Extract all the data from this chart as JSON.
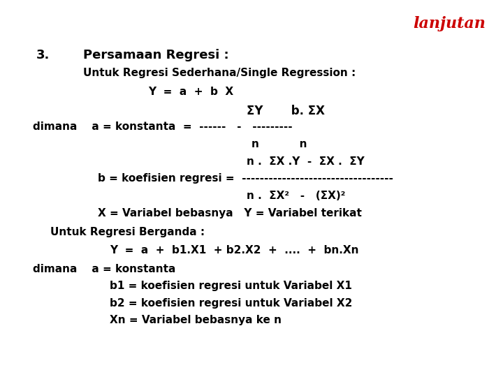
{
  "background_color": "#ffffff",
  "lanjutan_text": "lanjutan",
  "lanjutan_color": "#cc0000",
  "lanjutan_fx": 0.965,
  "lanjutan_fy": 0.958,
  "lanjutan_fontsize": 16,
  "lines": [
    {
      "text": "3.",
      "fx": 0.072,
      "fy": 0.87,
      "fs": 13,
      "bold": true
    },
    {
      "text": "Persamaan Regresi :",
      "fx": 0.165,
      "fy": 0.87,
      "fs": 13,
      "bold": true
    },
    {
      "text": "Untuk Regresi Sederhana/Single Regression :",
      "fx": 0.165,
      "fy": 0.82,
      "fs": 11,
      "bold": true
    },
    {
      "text": "Y  =  a  +  b  X",
      "fx": 0.295,
      "fy": 0.77,
      "fs": 11,
      "bold": true
    },
    {
      "text": "ΣY       b. ΣX",
      "fx": 0.49,
      "fy": 0.722,
      "fs": 12,
      "bold": true
    },
    {
      "text": "dimana    a = konstanta  =  ------   -   ---------",
      "fx": 0.065,
      "fy": 0.678,
      "fs": 11,
      "bold": true
    },
    {
      "text": "n           n",
      "fx": 0.5,
      "fy": 0.632,
      "fs": 11,
      "bold": true
    },
    {
      "text": "n .  ΣX .Y  -  ΣX .  ΣY",
      "fx": 0.49,
      "fy": 0.586,
      "fs": 11,
      "bold": true
    },
    {
      "text": "b = koefisien regresi =  ----------------------------------",
      "fx": 0.195,
      "fy": 0.54,
      "fs": 11,
      "bold": true
    },
    {
      "text": "n .  ΣX²   -   (ΣX)²",
      "fx": 0.49,
      "fy": 0.494,
      "fs": 11,
      "bold": true
    },
    {
      "text": "X = Variabel bebasnya   Y = Variabel terikat",
      "fx": 0.195,
      "fy": 0.448,
      "fs": 11,
      "bold": true
    },
    {
      "text": "Untuk Regresi Berganda :",
      "fx": 0.1,
      "fy": 0.398,
      "fs": 11,
      "bold": true
    },
    {
      "text": "Y  =  a  +  b1.X1  + b2.X2  +  ....  +  bn.Xn",
      "fx": 0.218,
      "fy": 0.35,
      "fs": 11,
      "bold": true
    },
    {
      "text": "dimana    a = konstanta",
      "fx": 0.065,
      "fy": 0.3,
      "fs": 11,
      "bold": true
    },
    {
      "text": "b1 = koefisien regresi untuk Variabel X1",
      "fx": 0.218,
      "fy": 0.255,
      "fs": 11,
      "bold": true
    },
    {
      "text": "b2 = koefisien regresi untuk Variabel X2",
      "fx": 0.218,
      "fy": 0.21,
      "fs": 11,
      "bold": true
    },
    {
      "text": "Xn = Variabel bebasnya ke n",
      "fx": 0.218,
      "fy": 0.165,
      "fs": 11,
      "bold": true
    }
  ]
}
